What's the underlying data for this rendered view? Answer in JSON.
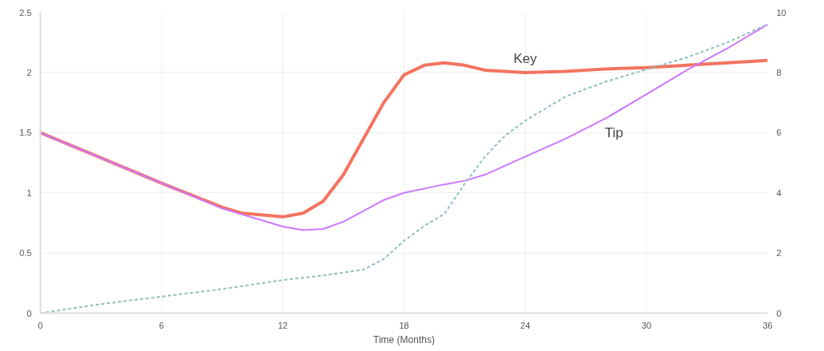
{
  "chart_data": {
    "type": "line",
    "xlabel": "Time (Months)",
    "xlim": [
      0,
      36
    ],
    "xticks": [
      0,
      6,
      12,
      18,
      24,
      30,
      36
    ],
    "ylim": [
      0,
      2.5
    ],
    "yticks": [
      0,
      0.5,
      1,
      1.5,
      2,
      2.5
    ],
    "y2lim": [
      0,
      10
    ],
    "y2ticks": [
      0,
      2,
      4,
      6,
      8,
      10
    ],
    "grid": true,
    "series": [
      {
        "name": "Key",
        "color": "#f4735f",
        "line_style": "solid",
        "x": [
          0,
          3,
          6,
          9,
          10,
          12,
          13,
          14,
          15,
          16,
          17,
          18,
          19,
          20,
          21,
          22,
          24,
          26,
          28,
          30,
          32,
          34,
          36
        ],
        "values": [
          1.5,
          1.29,
          1.08,
          0.88,
          0.83,
          0.8,
          0.83,
          0.93,
          1.15,
          1.45,
          1.75,
          1.98,
          2.06,
          2.08,
          2.06,
          2.02,
          2.0,
          2.01,
          2.03,
          2.04,
          2.06,
          2.08,
          2.1
        ]
      },
      {
        "name": "Tip",
        "color": "#cc77ff",
        "line_style": "solid",
        "x": [
          0,
          3,
          6,
          9,
          12,
          13,
          14,
          15,
          16,
          17,
          18,
          20,
          21,
          22,
          24,
          26,
          28,
          30,
          32,
          34,
          36
        ],
        "values": [
          1.5,
          1.29,
          1.08,
          0.87,
          0.72,
          0.69,
          0.7,
          0.76,
          0.85,
          0.94,
          1.0,
          1.07,
          1.1,
          1.15,
          1.3,
          1.45,
          1.62,
          1.82,
          2.02,
          2.2,
          2.4
        ]
      },
      {
        "color": "#8fbfc0",
        "line_style": "dashed",
        "axis": "y2",
        "x": [
          0,
          3,
          6,
          9,
          12,
          14,
          16,
          17,
          18,
          19,
          20,
          21,
          22,
          23,
          24,
          26,
          28,
          30,
          32,
          34,
          36
        ],
        "values": [
          0,
          0.3,
          0.55,
          0.8,
          1.1,
          1.25,
          1.45,
          1.8,
          2.4,
          2.9,
          3.3,
          4.3,
          5.2,
          5.9,
          6.4,
          7.2,
          7.7,
          8.1,
          8.5,
          9.0,
          9.6
        ]
      }
    ]
  }
}
